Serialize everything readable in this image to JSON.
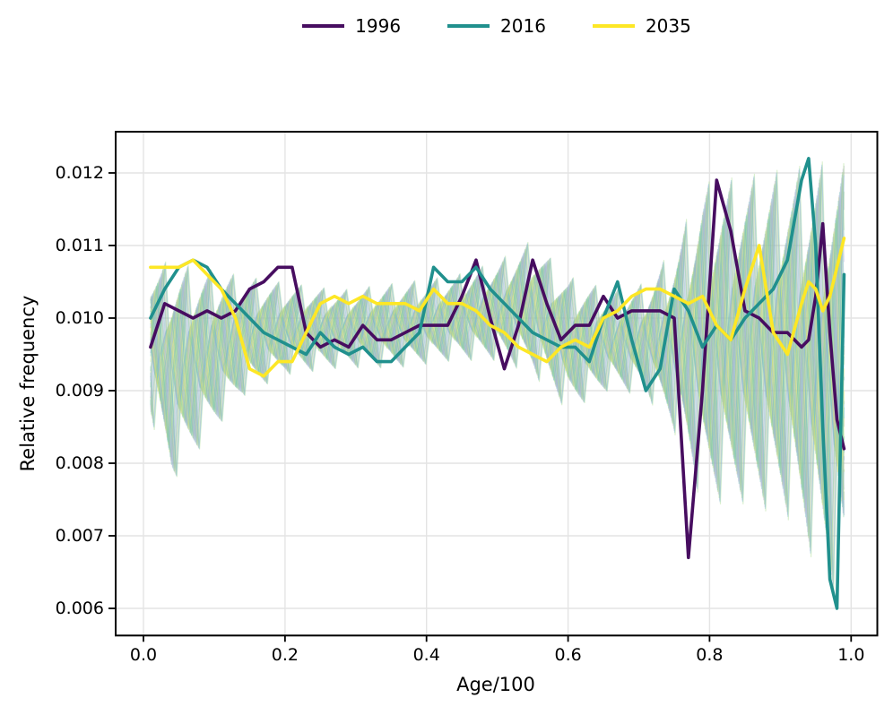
{
  "legend": {
    "items": [
      {
        "label": "1996",
        "color": "#470d60"
      },
      {
        "label": "2016",
        "color": "#20908d"
      },
      {
        "label": "2035",
        "color": "#fde725"
      }
    ]
  },
  "chart_data": {
    "type": "line",
    "title": "",
    "xlabel": "Age/100",
    "ylabel": "Relative frequency",
    "xlim": [
      -0.039,
      1.039
    ],
    "ylim": [
      0.00563,
      0.01257
    ],
    "grid": true,
    "grid_color": "#e4e4e4",
    "frame_color": "#000000",
    "legend_position": "top-center",
    "xticks": [
      0.0,
      0.2,
      0.4,
      0.6,
      0.8,
      1.0
    ],
    "xtick_labels": [
      "0.0",
      "0.2",
      "0.4",
      "0.6",
      "0.8",
      "1.0"
    ],
    "yticks": [
      0.006,
      0.007,
      0.008,
      0.009,
      0.01,
      0.011,
      0.012
    ],
    "ytick_labels": [
      "0.006",
      "0.007",
      "0.008",
      "0.009",
      "0.010",
      "0.011",
      "0.012"
    ],
    "x": [
      0.01,
      0.03,
      0.05,
      0.07,
      0.09,
      0.11,
      0.13,
      0.15,
      0.17,
      0.19,
      0.21,
      0.23,
      0.25,
      0.27,
      0.29,
      0.31,
      0.33,
      0.35,
      0.37,
      0.39,
      0.41,
      0.43,
      0.45,
      0.47,
      0.49,
      0.51,
      0.53,
      0.55,
      0.57,
      0.59,
      0.61,
      0.63,
      0.65,
      0.67,
      0.69,
      0.71,
      0.73,
      0.75,
      0.77,
      0.79,
      0.81,
      0.83,
      0.85,
      0.87,
      0.89,
      0.91,
      0.93,
      0.94,
      0.95,
      0.96,
      0.97,
      0.98,
      0.99
    ],
    "series": [
      {
        "name": "1996",
        "color": "#470d60",
        "linewidth": 3.6,
        "values": [
          0.0096,
          0.0102,
          0.0101,
          0.01,
          0.0101,
          0.01,
          0.0101,
          0.0104,
          0.0105,
          0.0107,
          0.0107,
          0.0098,
          0.0096,
          0.0097,
          0.0096,
          0.0099,
          0.0097,
          0.0097,
          0.0098,
          0.0099,
          0.0099,
          0.0099,
          0.0103,
          0.0108,
          0.01,
          0.0093,
          0.0099,
          0.0108,
          0.0102,
          0.0097,
          0.0099,
          0.0099,
          0.0103,
          0.01,
          0.0101,
          0.0101,
          0.0101,
          0.01,
          0.0067,
          0.009,
          0.0119,
          0.0112,
          0.0101,
          0.01,
          0.0098,
          0.0098,
          0.0096,
          0.0097,
          0.0103,
          0.0113,
          0.0098,
          0.0086,
          0.0082
        ]
      },
      {
        "name": "2016",
        "color": "#20908d",
        "linewidth": 3.6,
        "values": [
          0.01,
          0.0104,
          0.0107,
          0.0108,
          0.0107,
          0.0104,
          0.0102,
          0.01,
          0.0098,
          0.0097,
          0.0096,
          0.0095,
          0.0098,
          0.0096,
          0.0095,
          0.0096,
          0.0094,
          0.0094,
          0.0096,
          0.0098,
          0.0107,
          0.0105,
          0.0105,
          0.0107,
          0.0104,
          0.0102,
          0.01,
          0.0098,
          0.0097,
          0.0096,
          0.0096,
          0.0094,
          0.01,
          0.0105,
          0.0097,
          0.009,
          0.0093,
          0.0104,
          0.0101,
          0.0096,
          0.0099,
          0.0097,
          0.01,
          0.0102,
          0.0104,
          0.0108,
          0.0119,
          0.0122,
          0.011,
          0.0085,
          0.0064,
          0.006,
          0.0106
        ]
      },
      {
        "name": "2035",
        "color": "#fde725",
        "linewidth": 3.6,
        "values": [
          0.0107,
          0.0107,
          0.0107,
          0.0108,
          0.0106,
          0.0104,
          0.01,
          0.0093,
          0.0092,
          0.0094,
          0.0094,
          0.0098,
          0.0102,
          0.0103,
          0.0102,
          0.0103,
          0.0102,
          0.0102,
          0.0102,
          0.0101,
          0.0104,
          0.0102,
          0.0102,
          0.0101,
          0.0099,
          0.0098,
          0.0096,
          0.0095,
          0.0094,
          0.0096,
          0.0097,
          0.0096,
          0.01,
          0.0101,
          0.0103,
          0.0104,
          0.0104,
          0.0103,
          0.0102,
          0.0103,
          0.0099,
          0.0097,
          0.0104,
          0.011,
          0.0098,
          0.0095,
          0.0102,
          0.0105,
          0.0104,
          0.0101,
          0.0103,
          0.0107,
          0.0111
        ]
      }
    ],
    "background_ensemble": {
      "style": "criss-cross mesh of thin ensemble trajectories",
      "n_lines": 44,
      "x_start": 0.01,
      "x_end": 0.99,
      "period": 0.032,
      "opacity": 0.4,
      "linewidth": 1.1,
      "palette": [
        "#b4a7d2",
        "#93a5d3",
        "#79b8d6",
        "#62c1ba",
        "#74ce9d",
        "#a2da85",
        "#cfe56f",
        "#ebe55e"
      ],
      "envelope": [
        {
          "x": 0.01,
          "lo": 0.0086,
          "hi": 0.0108
        },
        {
          "x": 0.04,
          "lo": 0.0077,
          "hi": 0.0108
        },
        {
          "x": 0.09,
          "lo": 0.0083,
          "hi": 0.0107
        },
        {
          "x": 0.14,
          "lo": 0.0089,
          "hi": 0.0106
        },
        {
          "x": 0.2,
          "lo": 0.0092,
          "hi": 0.0105
        },
        {
          "x": 0.28,
          "lo": 0.0093,
          "hi": 0.0104
        },
        {
          "x": 0.36,
          "lo": 0.0093,
          "hi": 0.0105
        },
        {
          "x": 0.44,
          "lo": 0.0094,
          "hi": 0.0106
        },
        {
          "x": 0.5,
          "lo": 0.0094,
          "hi": 0.0108
        },
        {
          "x": 0.55,
          "lo": 0.0092,
          "hi": 0.0111
        },
        {
          "x": 0.6,
          "lo": 0.0087,
          "hi": 0.0106
        },
        {
          "x": 0.66,
          "lo": 0.009,
          "hi": 0.0104
        },
        {
          "x": 0.71,
          "lo": 0.0089,
          "hi": 0.0105
        },
        {
          "x": 0.75,
          "lo": 0.0084,
          "hi": 0.011
        },
        {
          "x": 0.79,
          "lo": 0.0074,
          "hi": 0.0119
        },
        {
          "x": 0.85,
          "lo": 0.0074,
          "hi": 0.012
        },
        {
          "x": 0.91,
          "lo": 0.0072,
          "hi": 0.0121
        },
        {
          "x": 0.96,
          "lo": 0.0064,
          "hi": 0.0122
        },
        {
          "x": 0.99,
          "lo": 0.006,
          "hi": 0.0123
        }
      ]
    }
  }
}
